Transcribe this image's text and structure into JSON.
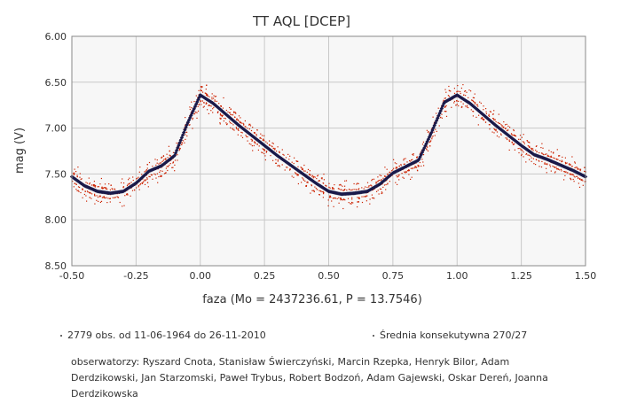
{
  "chart_data": {
    "type": "scatter",
    "title": "TT AQL [DCEP]",
    "xlabel": "faza (Mo = 2437236.61, P = 13.7546)",
    "ylabel": "mag (V)",
    "xlim": [
      -0.5,
      1.5
    ],
    "ylim": [
      8.5,
      6.0
    ],
    "y_inverted": true,
    "grid": true,
    "x_ticks": [
      "-0.50",
      "-0.25",
      "0.00",
      "0.25",
      "0.50",
      "0.75",
      "1.00",
      "1.25",
      "1.50"
    ],
    "y_ticks": [
      "6.00",
      "6.50",
      "7.00",
      "7.50",
      "8.00",
      "8.50"
    ],
    "series": [
      {
        "name": "2779 obs. od 11-06-1964 do 26-11-2010",
        "color": "#cc2200",
        "kind": "observations",
        "count": 2779,
        "scatter_around_mean": 0.18
      },
      {
        "name": "Średnia konsekutywna 270/27",
        "color": "#1a1a4a",
        "kind": "running-mean",
        "x": [
          -0.5,
          -0.45,
          -0.4,
          -0.35,
          -0.3,
          -0.25,
          -0.2,
          -0.15,
          -0.1,
          -0.05,
          0.0,
          0.05,
          0.1,
          0.15,
          0.2,
          0.25,
          0.3,
          0.35,
          0.4,
          0.45,
          0.5,
          0.55,
          0.6,
          0.65,
          0.7,
          0.75,
          0.8,
          0.85,
          0.9,
          0.95,
          1.0,
          1.05,
          1.1,
          1.15,
          1.2,
          1.25,
          1.3,
          1.35,
          1.4,
          1.45,
          1.5
        ],
        "y": [
          7.53,
          7.63,
          7.69,
          7.71,
          7.69,
          7.6,
          7.47,
          7.41,
          7.3,
          6.95,
          6.64,
          6.73,
          6.85,
          6.97,
          7.08,
          7.19,
          7.3,
          7.4,
          7.5,
          7.6,
          7.69,
          7.72,
          7.71,
          7.69,
          7.61,
          7.49,
          7.42,
          7.35,
          7.05,
          6.72,
          6.64,
          6.73,
          6.85,
          6.97,
          7.08,
          7.19,
          7.29,
          7.34,
          7.4,
          7.46,
          7.53
        ]
      }
    ]
  },
  "legend": {
    "observations": "2779 obs. od 11-06-1964 do 26-11-2010",
    "average": "Średnia konsekutywna 270/27"
  },
  "observers": "obserwatorzy: Ryszard Cnota, Stanisław Świerczyński, Marcin Rzepka, Henryk Bilor, Adam Derdzikowski, Jan Starzomski, Paweł Trybus, Robert Bodzoń, Adam Gajewski, Oskar Dereń, Joanna Derdzikowska"
}
